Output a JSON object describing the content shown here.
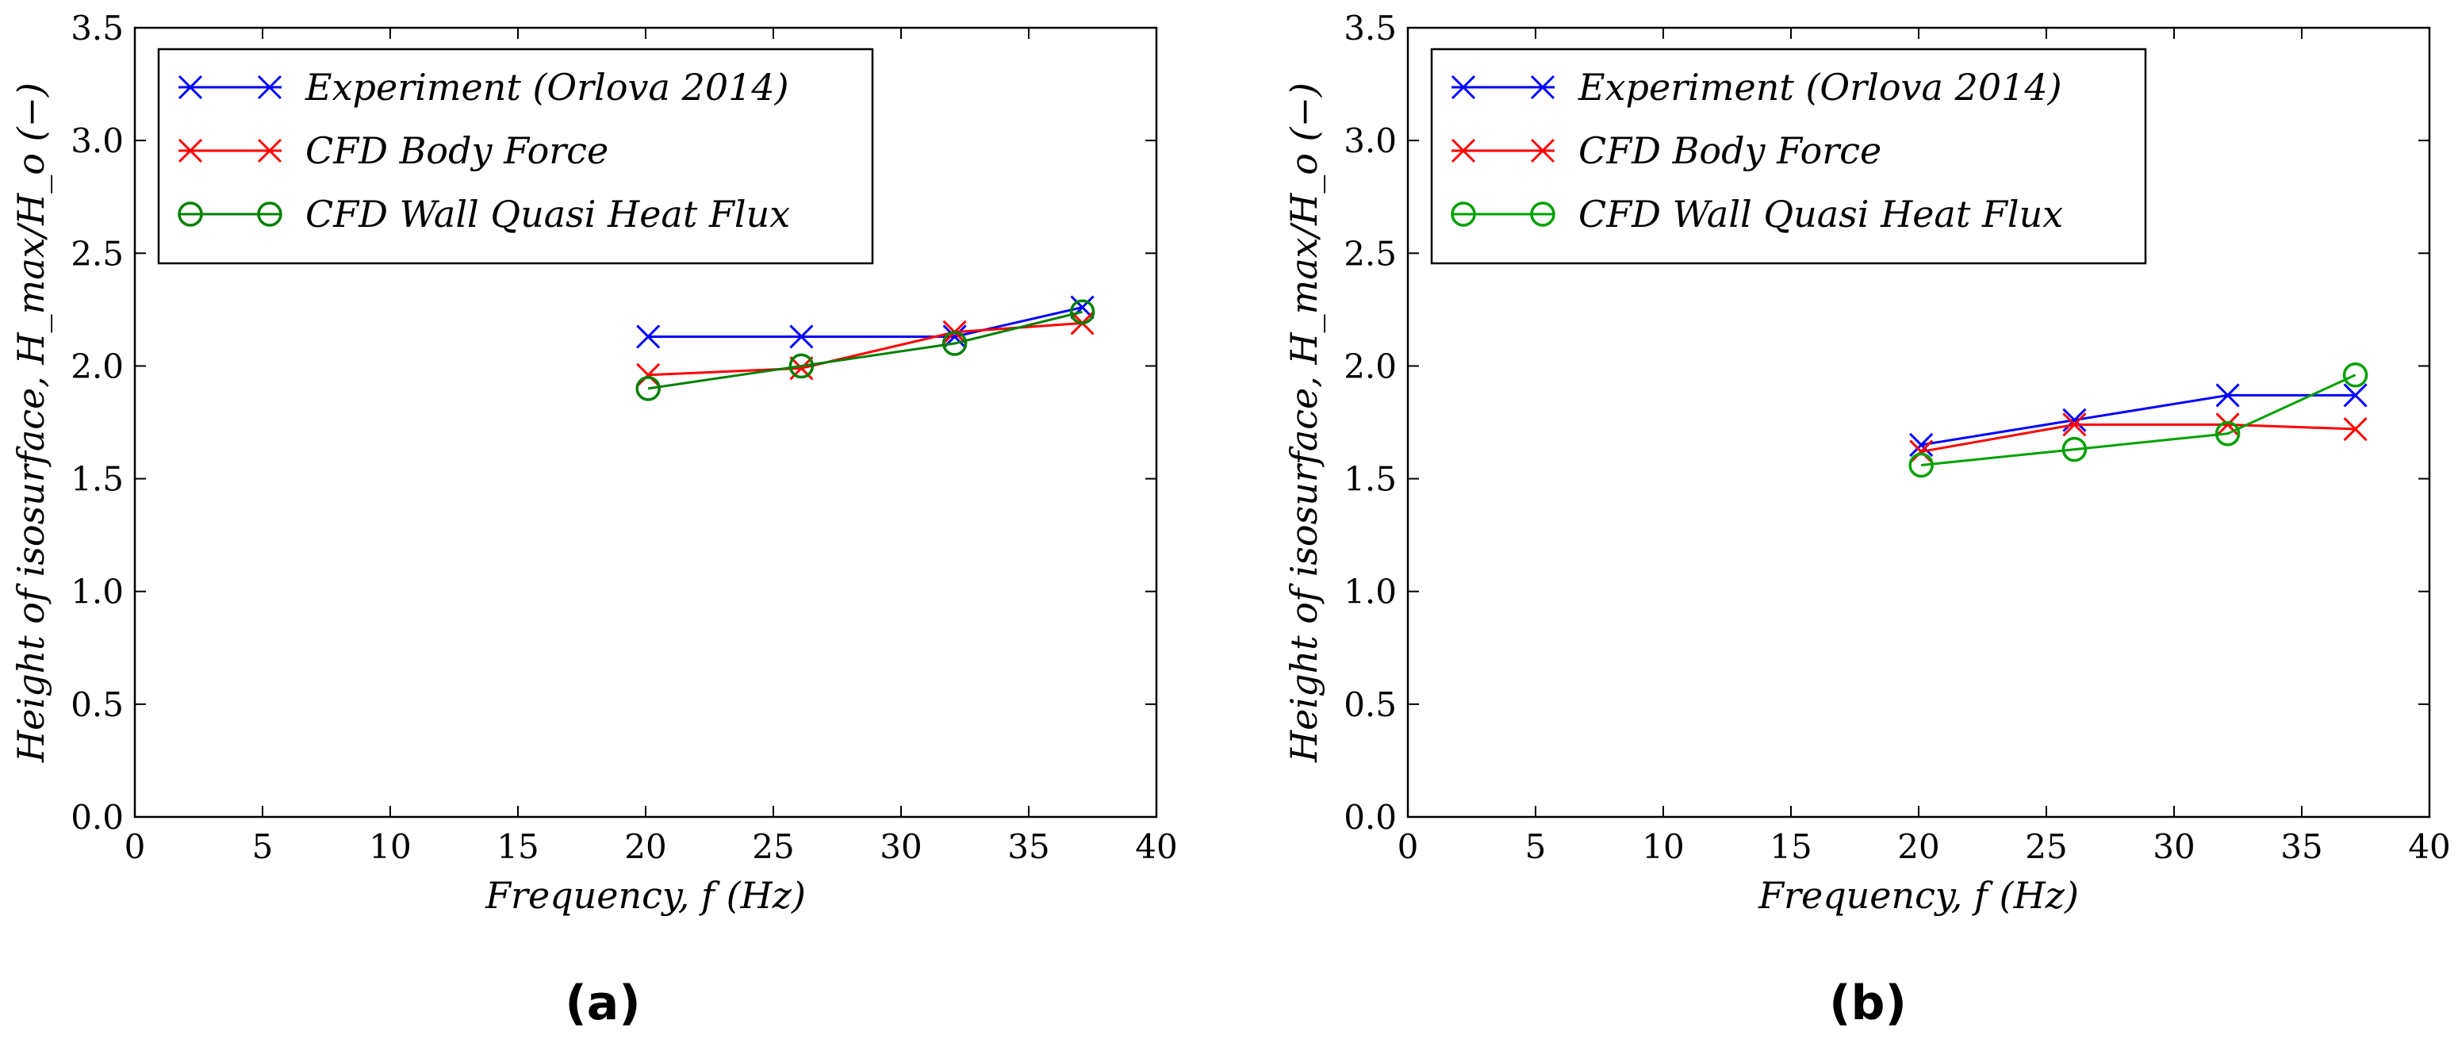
{
  "chart_data": [
    {
      "type": "line",
      "panel": "a",
      "caption": "(a)",
      "xlabel": "Frequency, f (Hz)",
      "ylabel": "Height of isosurface, H_max/H_o (−)",
      "xlim": [
        0,
        40
      ],
      "ylim": [
        0,
        3.5
      ],
      "xticks": [
        0,
        5,
        10,
        15,
        20,
        25,
        30,
        35,
        40
      ],
      "xtick_labels": [
        "0",
        "5",
        "10",
        "15",
        "20",
        "25",
        "30",
        "35",
        "40"
      ],
      "yticks": [
        0,
        0.5,
        1.0,
        1.5,
        2.0,
        2.5,
        3.0,
        3.5
      ],
      "ytick_labels": [
        "0.0",
        "0.5",
        "1.0",
        "1.5",
        "2.0",
        "2.5",
        "3.0",
        "3.5"
      ],
      "legend_position": "top-left",
      "series": [
        {
          "name": "Experiment (Orlova 2014)",
          "color": "#0000ff",
          "marker": "x",
          "x": [
            20.1,
            26.1,
            32.1,
            37.1
          ],
          "y": [
            2.13,
            2.13,
            2.13,
            2.26
          ]
        },
        {
          "name": "CFD Body Force",
          "color": "#ff0000",
          "marker": "x",
          "x": [
            20.1,
            26.1,
            32.1,
            37.1
          ],
          "y": [
            1.96,
            1.99,
            2.15,
            2.19
          ]
        },
        {
          "name": "CFD Wall Quasi Heat Flux",
          "color": "#008000",
          "marker": "o",
          "x": [
            20.1,
            26.1,
            32.1,
            37.1
          ],
          "y": [
            1.9,
            2.0,
            2.1,
            2.24
          ]
        }
      ]
    },
    {
      "type": "line",
      "panel": "b",
      "caption": "(b)",
      "xlabel": "Frequency, f (Hz)",
      "ylabel": "Height of isosurface, H_max/H_o (−)",
      "xlim": [
        0,
        40
      ],
      "ylim": [
        0,
        3.5
      ],
      "xticks": [
        0,
        5,
        10,
        15,
        20,
        25,
        30,
        35,
        40
      ],
      "xtick_labels": [
        "0",
        "5",
        "10",
        "15",
        "20",
        "25",
        "30",
        "35",
        "40"
      ],
      "yticks": [
        0,
        0.5,
        1.0,
        1.5,
        2.0,
        2.5,
        3.0,
        3.5
      ],
      "ytick_labels": [
        "0.0",
        "0.5",
        "1.0",
        "1.5",
        "2.0",
        "2.5",
        "3.0",
        "3.5"
      ],
      "legend_position": "top-left",
      "series": [
        {
          "name": "Experiment (Orlova 2014)",
          "color": "#0000ff",
          "marker": "x",
          "x": [
            20.1,
            26.1,
            32.1,
            37.1
          ],
          "y": [
            1.65,
            1.76,
            1.87,
            1.87
          ]
        },
        {
          "name": "CFD Body Force",
          "color": "#ff0000",
          "marker": "x",
          "x": [
            20.1,
            26.1,
            32.1,
            37.1
          ],
          "y": [
            1.62,
            1.74,
            1.74,
            1.72
          ]
        },
        {
          "name": "CFD Wall Quasi Heat Flux",
          "color": "#00a000",
          "marker": "o",
          "x": [
            20.1,
            26.1,
            32.1,
            37.1
          ],
          "y": [
            1.56,
            1.63,
            1.7,
            1.96
          ]
        }
      ]
    }
  ]
}
